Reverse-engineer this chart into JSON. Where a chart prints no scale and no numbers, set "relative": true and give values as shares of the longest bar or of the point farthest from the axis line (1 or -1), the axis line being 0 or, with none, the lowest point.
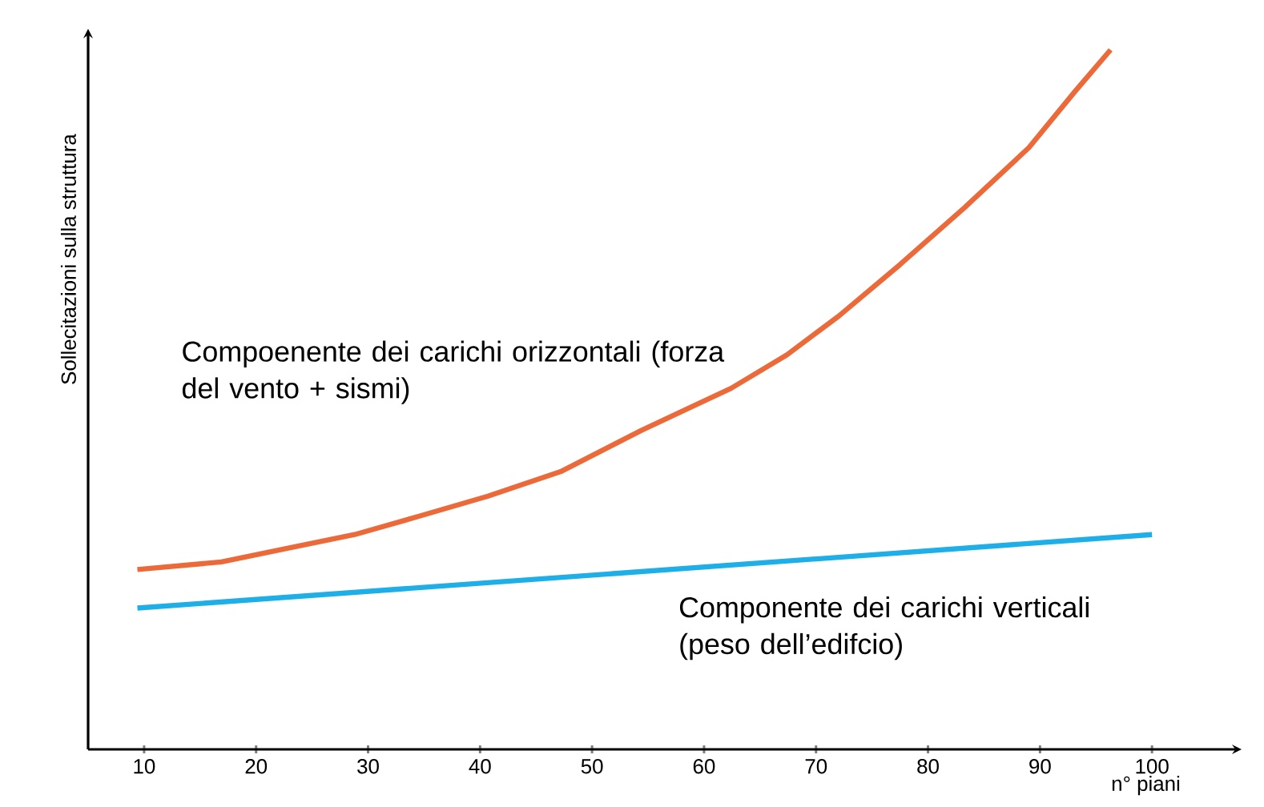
{
  "chart_data": {
    "type": "line",
    "relative": true,
    "ylabel": "Sollecitazioni sulla struttura",
    "xlabel": "n° piani",
    "xlim": [
      5,
      108
    ],
    "xticks": [
      10,
      20,
      30,
      40,
      50,
      60,
      70,
      80,
      90,
      100
    ],
    "grid": false,
    "marker": "none",
    "line_style": "solid",
    "series": [
      {
        "name": "Compoenente dei carichi orizzontali (forza del vento + sismi)",
        "color": "#ec6a3a",
        "x": [
          9.4,
          16.9,
          22.7,
          28.8,
          34.5,
          40.7,
          47.2,
          54.4,
          62.4,
          67.4,
          72.0,
          77.5,
          83.3,
          89.0,
          93.1,
          96.3
        ],
        "values": [
          0.257,
          0.268,
          0.287,
          0.307,
          0.333,
          0.362,
          0.397,
          0.456,
          0.516,
          0.564,
          0.619,
          0.693,
          0.775,
          0.86,
          0.94,
          1.0
        ]
      },
      {
        "name": "Componente dei carichi verticali (peso dell’edifcio)",
        "color": "#1eaee8",
        "x": [
          9.4,
          100
        ],
        "values": [
          0.202,
          0.307
        ]
      }
    ]
  }
}
